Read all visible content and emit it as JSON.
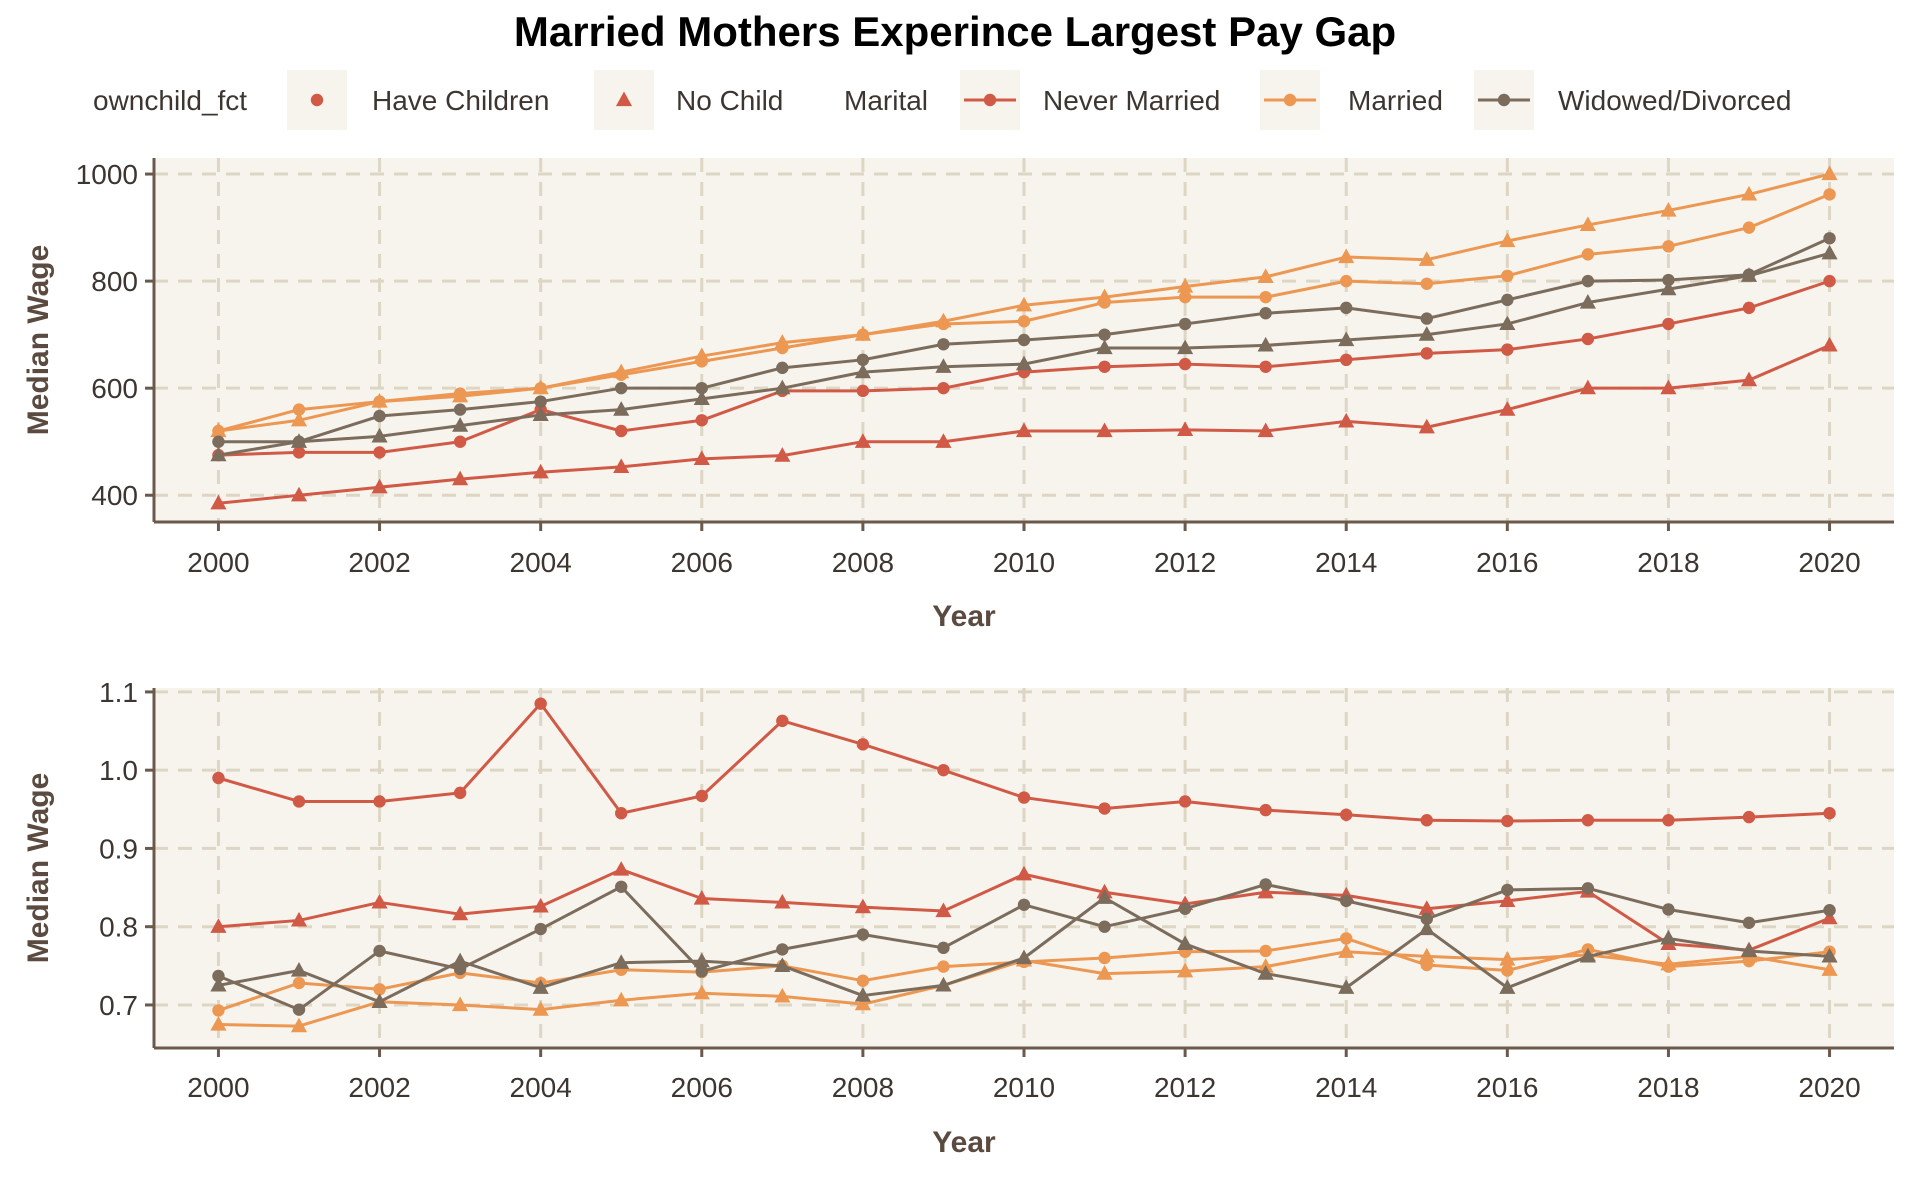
{
  "title": "Married Mothers Experince Largest Pay Gap",
  "colors": {
    "Never Married": "#d05a46",
    "Married": "#ec9752",
    "Widowed/Divorced": "#7b6c5c",
    "panel_bg": "#f7f4ee",
    "grid": "#ddd6c5",
    "axis": "#6b5a4c",
    "legend_key_bg": "#f7f4ee"
  },
  "legend": {
    "shape_title": "ownchild_fct",
    "shape_items": [
      {
        "label": "Have Children",
        "shape": "circle"
      },
      {
        "label": "No Child",
        "shape": "triangle"
      }
    ],
    "color_title": "Marital",
    "color_items": [
      {
        "label": "Never Married"
      },
      {
        "label": "Married"
      },
      {
        "label": "Widowed/Divorced"
      }
    ],
    "position": "top"
  },
  "chart_data": [
    {
      "type": "line",
      "xlabel": "Year",
      "ylabel": "Median Wage",
      "xlim": [
        1999.2,
        2020.8
      ],
      "ylim": [
        350,
        1030
      ],
      "x_ticks": [
        "2000",
        "2002",
        "2004",
        "2006",
        "2008",
        "2010",
        "2012",
        "2014",
        "2016",
        "2018",
        "2020"
      ],
      "y_ticks": [
        "400",
        "600",
        "800",
        "1000"
      ],
      "grid": true,
      "x": [
        2000,
        2001,
        2002,
        2003,
        2004,
        2005,
        2006,
        2007,
        2008,
        2009,
        2010,
        2011,
        2012,
        2013,
        2014,
        2015,
        2016,
        2017,
        2018,
        2019,
        2020
      ],
      "series": [
        {
          "marital": "Never Married",
          "ownchild": "Have Children",
          "values": [
            475,
            480,
            480,
            500,
            560,
            520,
            540,
            595,
            595,
            600,
            630,
            640,
            645,
            640,
            653,
            665,
            672,
            692,
            720,
            750,
            800
          ]
        },
        {
          "marital": "Never Married",
          "ownchild": "No Child",
          "values": [
            385,
            400,
            415,
            430,
            443,
            453,
            468,
            474,
            500,
            500,
            520,
            520,
            522,
            520,
            538,
            527,
            560,
            600,
            600,
            615,
            680
          ]
        },
        {
          "marital": "Married",
          "ownchild": "Have Children",
          "values": [
            520,
            560,
            575,
            590,
            600,
            625,
            650,
            675,
            700,
            720,
            725,
            760,
            770,
            770,
            800,
            795,
            810,
            850,
            865,
            900,
            962
          ]
        },
        {
          "marital": "Married",
          "ownchild": "No Child",
          "values": [
            520,
            540,
            575,
            585,
            600,
            630,
            660,
            685,
            700,
            725,
            755,
            770,
            790,
            808,
            845,
            840,
            875,
            905,
            932,
            962,
            1000
          ]
        },
        {
          "marital": "Widowed/Divorced",
          "ownchild": "Have Children",
          "values": [
            500,
            500,
            548,
            560,
            575,
            600,
            600,
            638,
            653,
            682,
            690,
            700,
            720,
            740,
            750,
            730,
            765,
            800,
            802,
            812,
            880
          ]
        },
        {
          "marital": "Widowed/Divorced",
          "ownchild": "No Child",
          "values": [
            475,
            500,
            510,
            530,
            550,
            560,
            580,
            600,
            630,
            640,
            645,
            675,
            675,
            680,
            690,
            700,
            720,
            760,
            785,
            810,
            852
          ]
        }
      ]
    },
    {
      "type": "line",
      "xlabel": "Year",
      "ylabel": "Median Wage",
      "xlim": [
        1999.2,
        2020.8
      ],
      "ylim": [
        0.645,
        1.105
      ],
      "x_ticks": [
        "2000",
        "2002",
        "2004",
        "2006",
        "2008",
        "2010",
        "2012",
        "2014",
        "2016",
        "2018",
        "2020"
      ],
      "y_ticks": [
        "0.7",
        "0.8",
        "0.9",
        "1.0",
        "1.1"
      ],
      "grid": true,
      "x": [
        2000,
        2001,
        2002,
        2003,
        2004,
        2005,
        2006,
        2007,
        2008,
        2009,
        2010,
        2011,
        2012,
        2013,
        2014,
        2015,
        2016,
        2017,
        2018,
        2019,
        2020
      ],
      "series": [
        {
          "marital": "Never Married",
          "ownchild": "Have Children",
          "values": [
            0.99,
            0.96,
            0.96,
            0.971,
            1.085,
            0.945,
            0.967,
            1.063,
            1.033,
            1.0,
            0.965,
            0.951,
            0.96,
            0.949,
            0.943,
            0.936,
            0.935,
            0.936,
            0.936,
            0.94,
            0.945
          ]
        },
        {
          "marital": "Never Married",
          "ownchild": "No Child",
          "values": [
            0.8,
            0.808,
            0.831,
            0.816,
            0.826,
            0.873,
            0.836,
            0.831,
            0.825,
            0.82,
            0.867,
            0.844,
            0.829,
            0.844,
            0.84,
            0.823,
            0.833,
            0.845,
            0.778,
            0.77,
            0.811
          ]
        },
        {
          "marital": "Married",
          "ownchild": "Have Children",
          "values": [
            0.693,
            0.728,
            0.72,
            0.741,
            0.728,
            0.745,
            0.742,
            0.75,
            0.731,
            0.749,
            0.755,
            0.76,
            0.768,
            0.769,
            0.785,
            0.751,
            0.744,
            0.771,
            0.749,
            0.756,
            0.768
          ]
        },
        {
          "marital": "Married",
          "ownchild": "No Child",
          "values": [
            0.675,
            0.673,
            0.704,
            0.7,
            0.694,
            0.706,
            0.715,
            0.711,
            0.701,
            0.725,
            0.757,
            0.74,
            0.743,
            0.749,
            0.768,
            0.762,
            0.758,
            0.764,
            0.752,
            0.762,
            0.745
          ]
        },
        {
          "marital": "Widowed/Divorced",
          "ownchild": "Have Children",
          "values": [
            0.737,
            0.694,
            0.769,
            0.746,
            0.797,
            0.851,
            0.743,
            0.771,
            0.79,
            0.773,
            0.828,
            0.8,
            0.823,
            0.854,
            0.833,
            0.81,
            0.847,
            0.849,
            0.822,
            0.805,
            0.821
          ]
        },
        {
          "marital": "Widowed/Divorced",
          "ownchild": "No Child",
          "values": [
            0.725,
            0.744,
            0.704,
            0.756,
            0.722,
            0.754,
            0.756,
            0.75,
            0.712,
            0.725,
            0.76,
            0.837,
            0.778,
            0.74,
            0.722,
            0.797,
            0.722,
            0.762,
            0.785,
            0.769,
            0.762
          ]
        }
      ]
    }
  ]
}
